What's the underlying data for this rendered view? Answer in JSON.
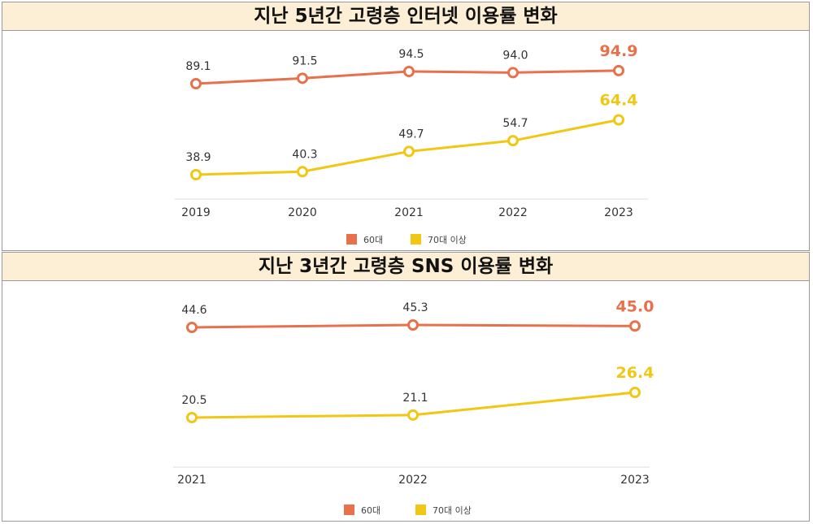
{
  "colors": {
    "series60": "#e8704a",
    "series70": "#f2c713",
    "axis": "#dddddd"
  },
  "chart_data": [
    {
      "type": "line",
      "title": "지난 5년간 고령층 인터넷 이용률 변화",
      "x": [
        "2019",
        "2020",
        "2021",
        "2022",
        "2023"
      ],
      "value_labels": {
        "60대": [
          "89.1",
          "91.5",
          "94.5",
          "94.0",
          "94.9"
        ],
        "70대 이상": [
          "38.9",
          "40.3",
          "49.7",
          "54.7",
          "64.4"
        ]
      },
      "series": [
        {
          "name": "60대",
          "values": [
            89.1,
            91.5,
            94.5,
            94.0,
            94.9
          ]
        },
        {
          "name": "70대 이상",
          "values": [
            38.9,
            40.3,
            49.7,
            54.7,
            64.4
          ]
        }
      ],
      "grid": false,
      "legend": "bottom-center"
    },
    {
      "type": "line",
      "title": "지난 3년간 고령층 SNS 이용률 변화",
      "x": [
        "2021",
        "2022",
        "2023"
      ],
      "value_labels": {
        "60대": [
          "44.6",
          "45.3",
          "45.0"
        ],
        "70대 이상": [
          "20.5",
          "21.1",
          "26.4"
        ]
      },
      "series": [
        {
          "name": "60대",
          "values": [
            44.6,
            45.3,
            45.0
          ]
        },
        {
          "name": "70대 이상",
          "values": [
            20.5,
            21.1,
            26.4
          ]
        }
      ],
      "grid": false,
      "legend": "bottom-center"
    }
  ]
}
